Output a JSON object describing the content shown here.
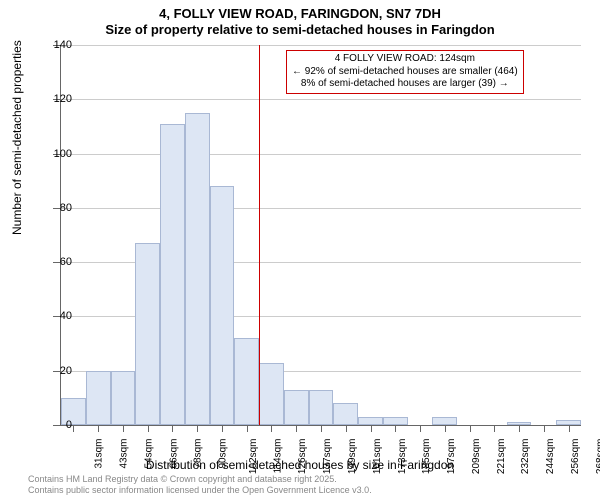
{
  "title_main": "4, FOLLY VIEW ROAD, FARINGDON, SN7 7DH",
  "title_sub": "Size of property relative to semi-detached houses in Faringdon",
  "y_axis_title": "Number of semi-detached properties",
  "x_axis_title": "Distribution of semi-detached houses by size in Faringdon",
  "chart": {
    "type": "histogram",
    "ylim": [
      0,
      140
    ],
    "ytick_step": 20,
    "y_ticks": [
      0,
      20,
      40,
      60,
      80,
      100,
      120,
      140
    ],
    "x_categories": [
      "31sqm",
      "43sqm",
      "54sqm",
      "66sqm",
      "78sqm",
      "90sqm",
      "102sqm",
      "114sqm",
      "126sqm",
      "137sqm",
      "149sqm",
      "161sqm",
      "173sqm",
      "185sqm",
      "197sqm",
      "209sqm",
      "221sqm",
      "232sqm",
      "244sqm",
      "256sqm",
      "268sqm"
    ],
    "values": [
      10,
      20,
      20,
      67,
      111,
      115,
      88,
      32,
      23,
      13,
      13,
      8,
      3,
      3,
      0,
      3,
      0,
      0,
      1,
      0,
      2
    ],
    "bar_fill": "#dde6f4",
    "bar_border": "#a9b8d4",
    "grid_color": "#cccccc",
    "axis_color": "#666666",
    "background_color": "#ffffff",
    "marker_line_color": "#cc0000",
    "marker_x_index": 8
  },
  "annotation": {
    "line1": "4 FOLLY VIEW ROAD: 124sqm",
    "line2": "← 92% of semi-detached houses are smaller (464)",
    "line3": "8% of semi-detached houses are larger (39) →",
    "border_color": "#cc0000"
  },
  "footer": {
    "line1": "Contains HM Land Registry data © Crown copyright and database right 2025.",
    "line2": "Contains public sector information licensed under the Open Government Licence v3.0."
  },
  "fonts": {
    "title_size_pt": 13,
    "axis_title_size_pt": 12,
    "tick_label_size_pt": 11,
    "annotation_size_pt": 10,
    "footer_size_pt": 9
  }
}
